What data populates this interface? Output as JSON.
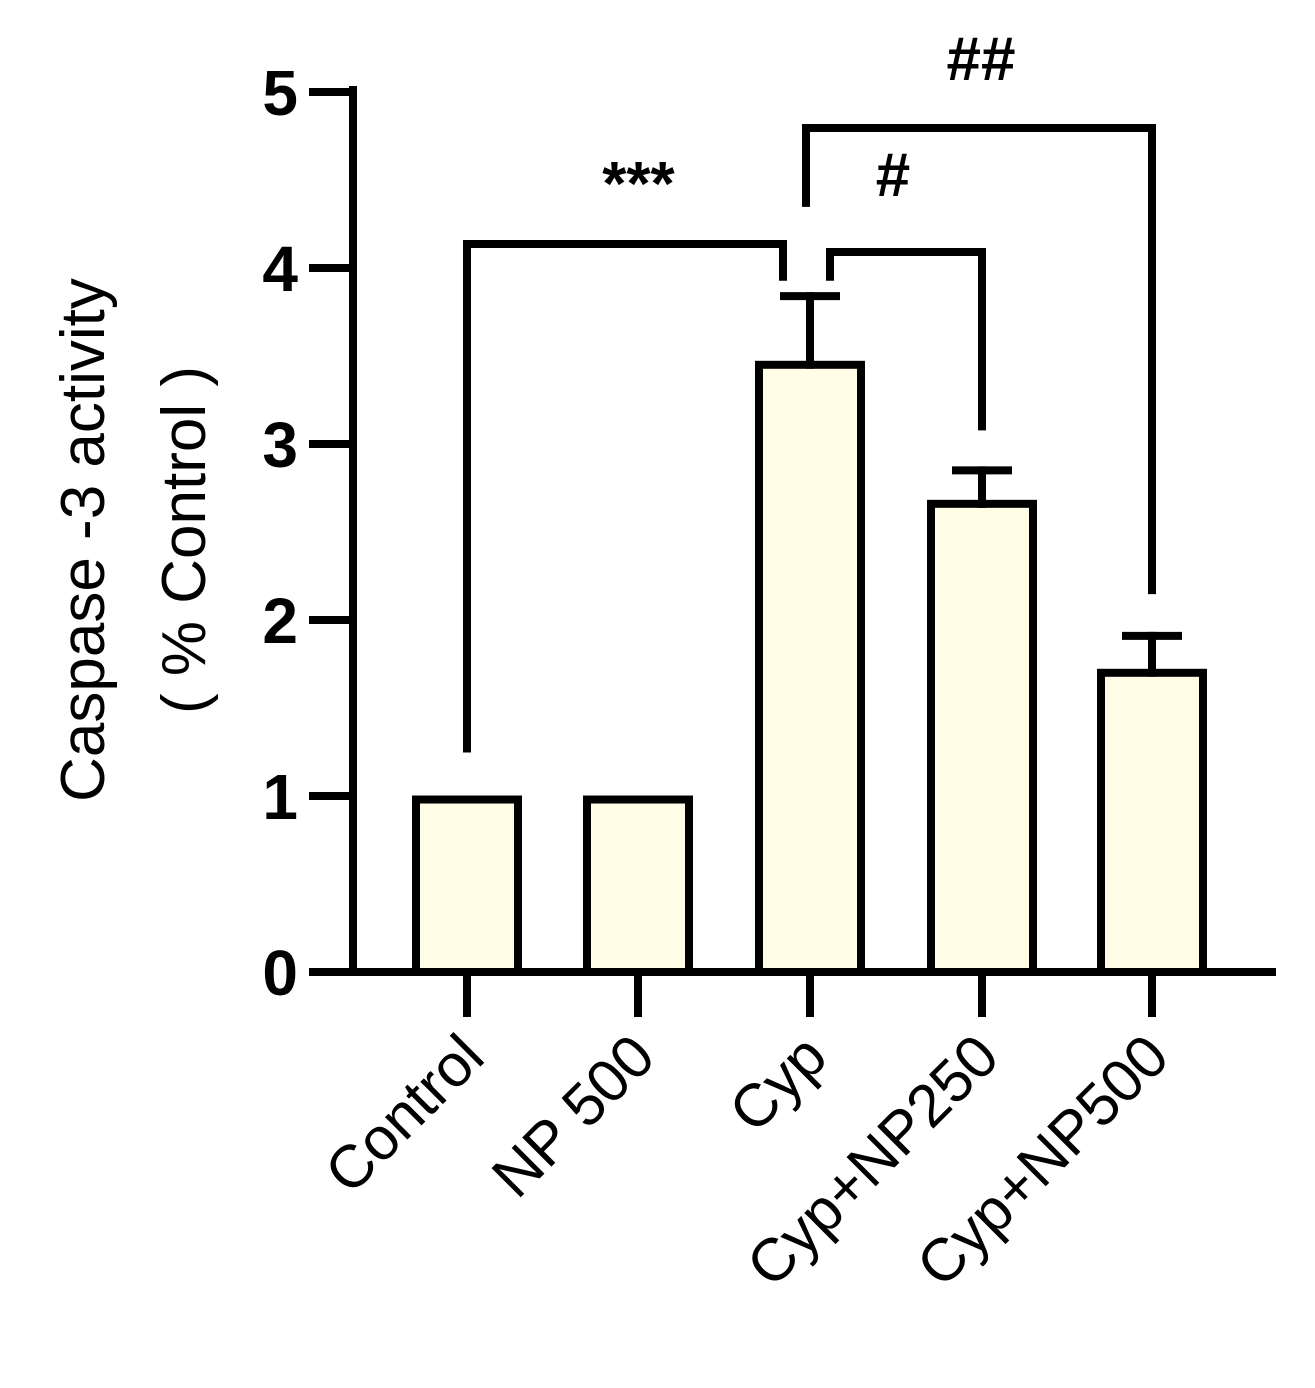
{
  "chart_data": {
    "type": "bar",
    "categories": [
      "Control",
      "NP 500",
      "Cyp",
      "Cyp+NP250",
      "Cyp+NP500"
    ],
    "values": [
      0.98,
      0.98,
      3.45,
      2.66,
      1.7
    ],
    "errors": [
      0.01,
      0.01,
      0.39,
      0.19,
      0.21
    ],
    "ylabel": "Caspase -3 activity",
    "ylabel2": "( % Control )",
    "ylim": [
      0,
      5
    ],
    "yticks": [
      "0",
      "1",
      "2",
      "3",
      "4",
      "5"
    ],
    "bar_color": "#fffde6",
    "edge_color": "#000000",
    "grid": false,
    "significance": [
      {
        "from": 0,
        "to": 2,
        "label": "***"
      },
      {
        "from": 2,
        "to": 3,
        "label": "#"
      },
      {
        "from": 2,
        "to": 4,
        "label": "##"
      }
    ]
  }
}
